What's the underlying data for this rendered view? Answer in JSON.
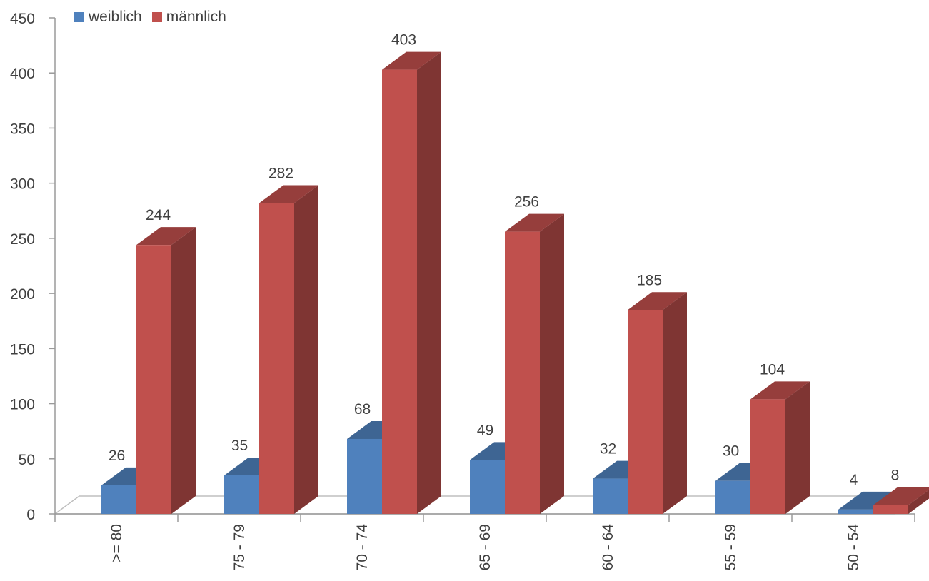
{
  "chart_data": {
    "type": "bar",
    "title": "",
    "xlabel": "",
    "ylabel": "",
    "categories": [
      ">= 80",
      "75 - 79",
      "70 - 74",
      "65 - 69",
      "60 - 64",
      "55 - 59",
      "50 - 54"
    ],
    "series": [
      {
        "name": "weiblich",
        "values": [
          26,
          35,
          68,
          49,
          32,
          30,
          4
        ],
        "color": "#4F81BD"
      },
      {
        "name": "männlich",
        "values": [
          244,
          282,
          403,
          256,
          185,
          104,
          8
        ],
        "color": "#C0504D"
      }
    ],
    "ylim": [
      0,
      450
    ],
    "yticks": [
      0,
      50,
      100,
      150,
      200,
      250,
      300,
      350,
      400,
      450
    ],
    "style": "3d-clustered-column",
    "grid": false,
    "legend": "top-left",
    "data_labels": true
  }
}
